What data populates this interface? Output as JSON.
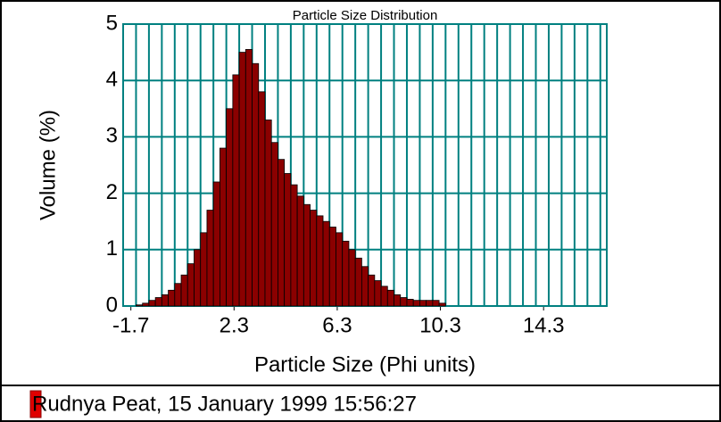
{
  "chart_data": {
    "type": "histogram",
    "title": "Particle Size Distribution",
    "xlabel": "Particle Size (Phi units)",
    "ylabel": "Volume (%)",
    "bins": [
      -1.5,
      -1.25,
      -1,
      -0.75,
      -0.5,
      -0.25,
      0,
      0.25,
      0.5,
      0.75,
      1,
      1.25,
      1.5,
      1.75,
      2,
      2.25,
      2.5,
      2.75,
      3,
      3.25,
      3.5,
      3.75,
      4,
      4.25,
      4.5,
      4.75,
      5,
      5.25,
      5.5,
      5.75,
      6,
      6.25,
      6.5,
      6.75,
      7,
      7.25,
      7.5,
      7.75,
      8,
      8.25,
      8.5,
      8.75,
      9,
      9.25,
      9.5,
      9.75,
      10,
      10.25,
      10.5
    ],
    "series": [
      {
        "name": "Rudnya Peat, 15 January 1999 15:56:27",
        "color": "#8b0000",
        "values": [
          0.02,
          0.05,
          0.1,
          0.15,
          0.2,
          0.28,
          0.4,
          0.55,
          0.75,
          1.0,
          1.3,
          1.7,
          2.2,
          2.8,
          3.5,
          4.1,
          4.5,
          4.55,
          4.3,
          3.8,
          3.3,
          2.9,
          2.6,
          2.35,
          2.15,
          1.95,
          1.8,
          1.7,
          1.6,
          1.5,
          1.4,
          1.3,
          1.15,
          1.0,
          0.85,
          0.7,
          0.55,
          0.45,
          0.35,
          0.28,
          0.2,
          0.15,
          0.12,
          0.1,
          0.1,
          0.1,
          0.1,
          0.05
        ]
      }
    ],
    "xlim": [
      -2,
      16.75
    ],
    "xticks": [
      -1.7,
      2.3,
      6.3,
      10.3,
      14.3
    ],
    "xgrid": 0.5,
    "ylim": [
      0,
      5
    ],
    "yticks": [
      0,
      1,
      2,
      3,
      4,
      5
    ],
    "grid": true,
    "grid_color": "#008080",
    "legend": "bottom-left"
  }
}
